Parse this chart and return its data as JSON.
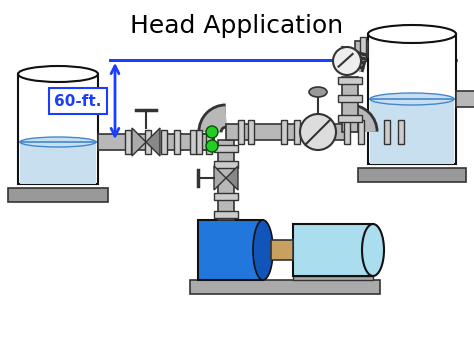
{
  "title": "Head Application",
  "title_fontsize": 18,
  "title_color": "#000000",
  "bg_color": "#ffffff",
  "arrow_color": "#1a3eff",
  "water_color": "#c8dff0",
  "pipe_color": "#b8b8b8",
  "pipe_edge_color": "#333333",
  "pump_body_color": "#2277dd",
  "motor_color": "#aaddee",
  "green_dot_color": "#22cc22",
  "label_text": "60-ft.",
  "label_fontsize": 11,
  "label_color": "#1a3eff",
  "label_box_edge": "#1a3eff",
  "fig_width": 4.74,
  "fig_height": 3.54,
  "dpi": 100
}
